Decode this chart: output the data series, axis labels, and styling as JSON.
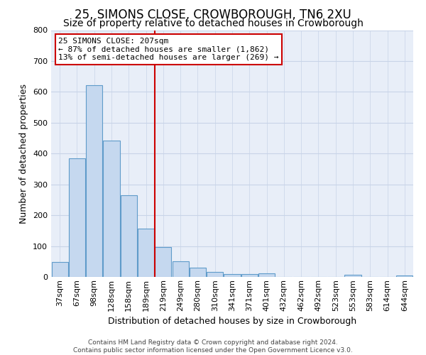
{
  "title": "25, SIMONS CLOSE, CROWBOROUGH, TN6 2XU",
  "subtitle": "Size of property relative to detached houses in Crowborough",
  "xlabel": "Distribution of detached houses by size in Crowborough",
  "ylabel": "Number of detached properties",
  "categories": [
    "37sqm",
    "67sqm",
    "98sqm",
    "128sqm",
    "158sqm",
    "189sqm",
    "219sqm",
    "249sqm",
    "280sqm",
    "310sqm",
    "341sqm",
    "371sqm",
    "401sqm",
    "432sqm",
    "462sqm",
    "492sqm",
    "523sqm",
    "553sqm",
    "583sqm",
    "614sqm",
    "644sqm"
  ],
  "values": [
    48,
    385,
    622,
    443,
    265,
    157,
    97,
    51,
    30,
    16,
    10,
    10,
    12,
    0,
    0,
    0,
    0,
    6,
    0,
    0,
    5
  ],
  "bar_color": "#c5d8ef",
  "bar_edge_color": "#5f9bca",
  "vline_index": 6,
  "vline_color": "#cc0000",
  "ylim": [
    0,
    800
  ],
  "yticks": [
    0,
    100,
    200,
    300,
    400,
    500,
    600,
    700,
    800
  ],
  "annotation_title": "25 SIMONS CLOSE: 207sqm",
  "annotation_line2": "← 87% of detached houses are smaller (1,862)",
  "annotation_line3": "13% of semi-detached houses are larger (269) →",
  "footer_line1": "Contains HM Land Registry data © Crown copyright and database right 2024.",
  "footer_line2": "Contains public sector information licensed under the Open Government Licence v3.0.",
  "background_color": "#ffffff",
  "plot_bg_color": "#e8eef8",
  "grid_color": "#c8d4e8",
  "title_fontsize": 12,
  "subtitle_fontsize": 10,
  "axis_label_fontsize": 9,
  "tick_fontsize": 8,
  "footer_fontsize": 6.5
}
